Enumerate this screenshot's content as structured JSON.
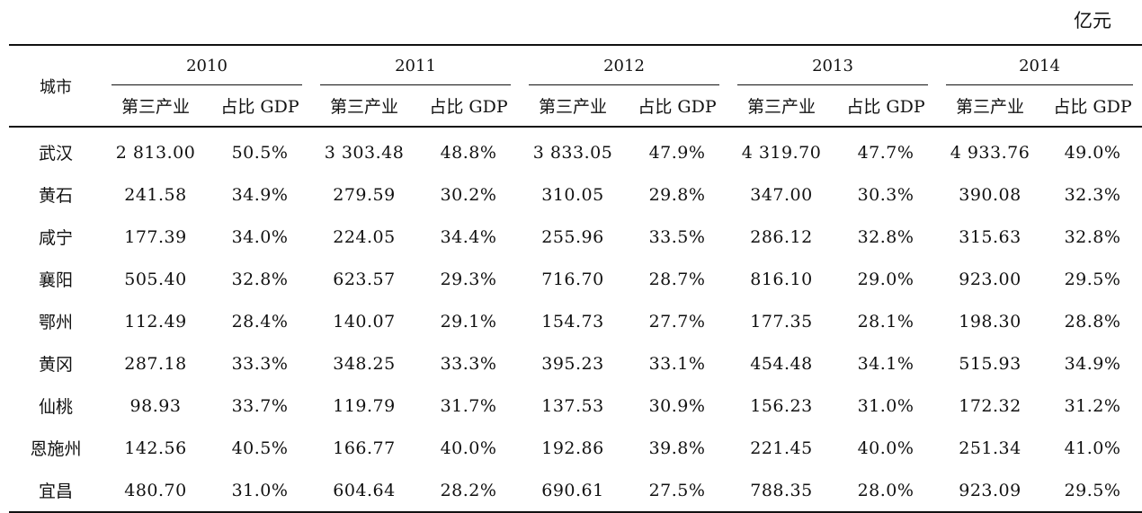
{
  "unit_label": "亿元",
  "table": {
    "city_header": "城市",
    "years": [
      "2010",
      "2011",
      "2012",
      "2013",
      "2014"
    ],
    "sub_headers": [
      "第三产业",
      "占比 GDP"
    ],
    "rows": [
      {
        "city": "武汉",
        "values": [
          "2 813.00",
          "50.5%",
          "3 303.48",
          "48.8%",
          "3 833.05",
          "47.9%",
          "4 319.70",
          "47.7%",
          "4 933.76",
          "49.0%"
        ]
      },
      {
        "city": "黄石",
        "values": [
          "241.58",
          "34.9%",
          "279.59",
          "30.2%",
          "310.05",
          "29.8%",
          "347.00",
          "30.3%",
          "390.08",
          "32.3%"
        ]
      },
      {
        "city": "咸宁",
        "values": [
          "177.39",
          "34.0%",
          "224.05",
          "34.4%",
          "255.96",
          "33.5%",
          "286.12",
          "32.8%",
          "315.63",
          "32.8%"
        ]
      },
      {
        "city": "襄阳",
        "values": [
          "505.40",
          "32.8%",
          "623.57",
          "29.3%",
          "716.70",
          "28.7%",
          "816.10",
          "29.0%",
          "923.00",
          "29.5%"
        ]
      },
      {
        "city": "鄂州",
        "values": [
          "112.49",
          "28.4%",
          "140.07",
          "29.1%",
          "154.73",
          "27.7%",
          "177.35",
          "28.1%",
          "198.30",
          "28.8%"
        ]
      },
      {
        "city": "黄冈",
        "values": [
          "287.18",
          "33.3%",
          "348.25",
          "33.3%",
          "395.23",
          "33.1%",
          "454.48",
          "34.1%",
          "515.93",
          "34.9%"
        ]
      },
      {
        "city": "仙桃",
        "values": [
          "98.93",
          "33.7%",
          "119.79",
          "31.7%",
          "137.53",
          "30.9%",
          "156.23",
          "31.0%",
          "172.32",
          "31.2%"
        ]
      },
      {
        "city": "恩施州",
        "values": [
          "142.56",
          "40.5%",
          "166.77",
          "40.0%",
          "192.86",
          "39.8%",
          "221.45",
          "40.0%",
          "251.34",
          "41.0%"
        ]
      },
      {
        "city": "宜昌",
        "values": [
          "480.70",
          "31.0%",
          "604.64",
          "28.2%",
          "690.61",
          "27.5%",
          "788.35",
          "28.0%",
          "923.09",
          "29.5%"
        ]
      }
    ]
  }
}
